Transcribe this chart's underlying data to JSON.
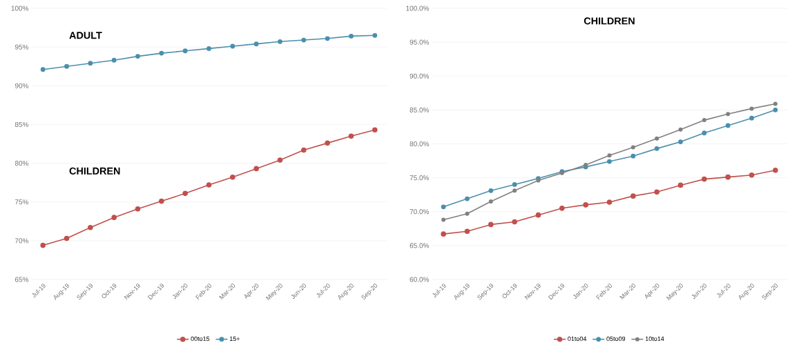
{
  "chart_data": [
    {
      "type": "line",
      "categories": [
        "Jul-19",
        "Aug-19",
        "Sep-19",
        "Oct-19",
        "Nov-19",
        "Dec-19",
        "Jan-20",
        "Feb-20",
        "Mar-20",
        "Apr-20",
        "May-20",
        "Jun-20",
        "Jul-20",
        "Aug-20",
        "Sep-20"
      ],
      "series": [
        {
          "name": "00to15",
          "color": "#c0504d",
          "values": [
            69.4,
            70.3,
            71.7,
            73.0,
            74.1,
            75.1,
            76.1,
            77.2,
            78.2,
            79.3,
            80.4,
            81.7,
            82.6,
            83.5,
            84.3
          ]
        },
        {
          "name": "15+",
          "color": "#4a8fad",
          "values": [
            92.1,
            92.5,
            92.9,
            93.3,
            93.8,
            94.2,
            94.5,
            94.8,
            95.1,
            95.4,
            95.7,
            95.9,
            96.1,
            96.4,
            96.5
          ]
        }
      ],
      "annotations": [
        "ADULT",
        "CHILDREN"
      ],
      "ylim": [
        65,
        100
      ],
      "yticks": [
        {
          "value": 65,
          "label": "65%"
        },
        {
          "value": 70,
          "label": "70%"
        },
        {
          "value": 75,
          "label": "75%"
        },
        {
          "value": 80,
          "label": "80%"
        },
        {
          "value": 85,
          "label": "85%"
        },
        {
          "value": 90,
          "label": "90%"
        },
        {
          "value": 95,
          "label": "95%"
        },
        {
          "value": 100,
          "label": "100%"
        }
      ],
      "grid": "y",
      "legend": "bottom",
      "marker": "circle",
      "line_style": "solid"
    },
    {
      "type": "line",
      "title": "CHILDREN",
      "categories": [
        "Jul-19",
        "Aug-19",
        "Sep-19",
        "Oct-19",
        "Nov-19",
        "Dec-19",
        "Jan-20",
        "Feb-20",
        "Mar-20",
        "Apr-20",
        "May-20",
        "Jun-20",
        "Jul-20",
        "Aug-20",
        "Sep-20"
      ],
      "series": [
        {
          "name": "01to04",
          "color": "#c0504d",
          "values": [
            66.7,
            67.1,
            68.1,
            68.5,
            69.5,
            70.5,
            71.0,
            71.4,
            72.3,
            72.9,
            73.9,
            74.8,
            75.1,
            75.4,
            76.1
          ]
        },
        {
          "name": "05to09",
          "color": "#4a8fad",
          "values": [
            70.7,
            71.9,
            73.1,
            74.0,
            74.9,
            75.9,
            76.6,
            77.4,
            78.2,
            79.3,
            80.3,
            81.6,
            82.7,
            83.8,
            85.0
          ]
        },
        {
          "name": "10to14",
          "color": "#808080",
          "values": [
            68.8,
            69.7,
            71.5,
            73.1,
            74.6,
            75.7,
            76.9,
            78.3,
            79.5,
            80.8,
            82.1,
            83.5,
            84.4,
            85.2,
            85.9
          ]
        }
      ],
      "ylim": [
        60,
        100
      ],
      "yticks": [
        {
          "value": 60,
          "label": "60.0%"
        },
        {
          "value": 65,
          "label": "65.0%"
        },
        {
          "value": 70,
          "label": "70.0%"
        },
        {
          "value": 75,
          "label": "75.0%"
        },
        {
          "value": 80,
          "label": "80.0%"
        },
        {
          "value": 85,
          "label": "85.0%"
        },
        {
          "value": 90,
          "label": "90.0%"
        },
        {
          "value": 95,
          "label": "95.0%"
        },
        {
          "value": 100,
          "label": "100.0%"
        }
      ],
      "grid": "y",
      "legend": "bottom",
      "marker": "circle",
      "line_style": "solid"
    }
  ]
}
